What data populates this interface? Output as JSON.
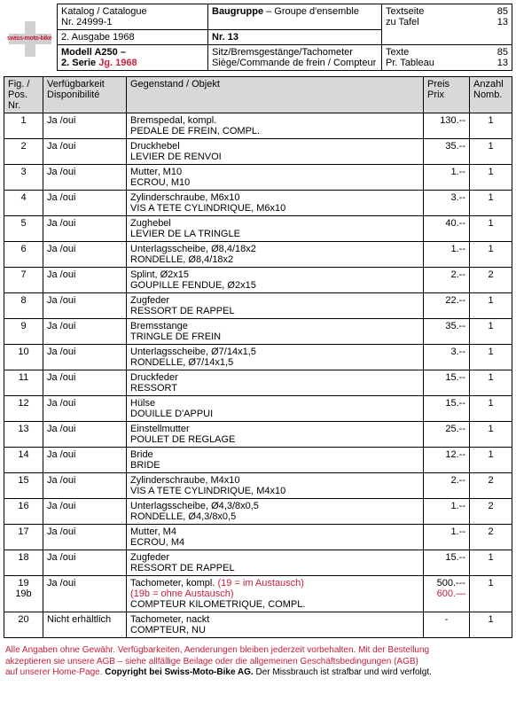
{
  "header": {
    "katalog_label": "Katalog / Catalogue",
    "katalog_nr": "Nr. 24999-1",
    "baugruppe_label": "Baugruppe",
    "baugruppe_sub": " – Groupe d'ensemble",
    "textseite_label": "Textseite",
    "textseite_val": "85",
    "tafel_label": "zu Tafel",
    "tafel_val": "13",
    "ausgabe": "2. Ausgabe 1968",
    "nr_label": "Nr. 13",
    "modell_line1": "Modell A250 –",
    "modell_line2a": "2. Serie ",
    "modell_line2b": "Jg. 1968",
    "desc_de": "Sitz/Bremsgestänge/Tachometer",
    "desc_fr": "Siège/Commande de frein / Compteur",
    "texte_label": "Texte",
    "texte_val": "85",
    "prtab_label": "Pr. Tableau",
    "prtab_val": "13"
  },
  "columns": {
    "fig": "Fig. / Pos. Nr.",
    "verf": "Verfügbarkeit Disponibilité",
    "gegen": "Gegenstand / Objekt",
    "preis": "Preis Prix",
    "anz": "Anzahl Nomb."
  },
  "rows": [
    {
      "fig": "1",
      "verf": "Ja /oui",
      "de": "Bremspedal, kompl.",
      "fr": "PEDALE DE FREIN, COMPL.",
      "preis": "130.--",
      "anz": "1"
    },
    {
      "fig": "2",
      "verf": "Ja /oui",
      "de": "Druckhebel",
      "fr": "LEVIER DE RENVOI",
      "preis": "35.--",
      "anz": "1"
    },
    {
      "fig": "3",
      "verf": "Ja /oui",
      "de": "Mutter, M10",
      "fr": "ECROU, M10",
      "preis": "1.--",
      "anz": "1"
    },
    {
      "fig": "4",
      "verf": "Ja /oui",
      "de": "Zylinderschraube, M6x10",
      "fr": "VIS A TETE CYLINDRIQUE, M6x10",
      "preis": "3.--",
      "anz": "1"
    },
    {
      "fig": "5",
      "verf": "Ja /oui",
      "de": "Zughebel",
      "fr": "LEVIER DE LA TRINGLE",
      "preis": "40.--",
      "anz": "1"
    },
    {
      "fig": "6",
      "verf": "Ja /oui",
      "de": "Unterlagsscheibe, Ø8,4/18x2",
      "fr": "RONDELLE, Ø8,4/18x2",
      "preis": "1.--",
      "anz": "1"
    },
    {
      "fig": "7",
      "verf": "Ja /oui",
      "de": "Splint, Ø2x15",
      "fr": "GOUPILLE FENDUE, Ø2x15",
      "preis": "2.--",
      "anz": "2"
    },
    {
      "fig": "8",
      "verf": "Ja /oui",
      "de": "Zugfeder",
      "fr": "RESSORT DE RAPPEL",
      "preis": "22.--",
      "anz": "1"
    },
    {
      "fig": "9",
      "verf": "Ja /oui",
      "de": "Bremsstange",
      "fr": "TRINGLE DE FREIN",
      "preis": "35.--",
      "anz": "1"
    },
    {
      "fig": "10",
      "verf": "Ja /oui",
      "de": "Unterlagsscheibe, Ø7/14x1,5",
      "fr": "RONDELLE, Ø7/14x1,5",
      "preis": "3.--",
      "anz": "1"
    },
    {
      "fig": "11",
      "verf": "Ja /oui",
      "de": "Druckfeder",
      "fr": "RESSORT",
      "preis": "15.--",
      "anz": "1"
    },
    {
      "fig": "12",
      "verf": "Ja /oui",
      "de": "Hülse",
      "fr": "DOUILLE D'APPUI",
      "preis": "15.--",
      "anz": "1"
    },
    {
      "fig": "13",
      "verf": "Ja /oui",
      "de": "Einstellmutter",
      "fr": "POULET DE REGLAGE",
      "preis": "25.--",
      "anz": "1"
    },
    {
      "fig": "14",
      "verf": "Ja /oui",
      "de": "Bride",
      "fr": "BRIDE",
      "preis": "12.--",
      "anz": "1"
    },
    {
      "fig": "15",
      "verf": "Ja /oui",
      "de": "Zylinderschraube, M4x10",
      "fr": "VIS A TETE CYLINDRIQUE, M4x10",
      "preis": "2.--",
      "anz": "2"
    },
    {
      "fig": "16",
      "verf": "Ja /oui",
      "de": "Unterlagsscheibe, Ø4,3/8x0,5",
      "fr": "RONDELLE, Ø4,3/8x0,5",
      "preis": "1.--",
      "anz": "2"
    },
    {
      "fig": "17",
      "verf": "Ja /oui",
      "de": "Mutter, M4",
      "fr": "ECROU, M4",
      "preis": "1.--",
      "anz": "2"
    },
    {
      "fig": "18",
      "verf": "Ja /oui",
      "de": "Zugfeder",
      "fr": "RESSORT DE RAPPEL",
      "preis": "15.--",
      "anz": "1"
    }
  ],
  "row19": {
    "fig1": "19",
    "fig2": "19b",
    "verf": "Ja /oui",
    "de": "Tachometer, kompl. ",
    "de_red": "(19 = im Austausch)",
    "l2_red": "(19b = ohne Austausch)",
    "fr": "COMPTEUR KILOMETRIQUE, COMPL.",
    "preis1": "500.---",
    "preis2": "600.—",
    "anz": "1"
  },
  "row20": {
    "fig": "20",
    "verf": "Nicht erhältlich",
    "de": "Tachometer, nackt",
    "fr": "COMPTEUR, NU",
    "preis": "-",
    "anz": "1"
  },
  "footer": {
    "l1": "Alle Angaben ohne Gewähr. Verfügbarkeiten, Aenderungen bleiben jederzeit vorbehalten. Mit der Bestellung",
    "l2": "akzeptieren sie unsere AGB – siehe allfällige Beilage oder die allgemeinen Geschäftsbedingungen (AGB)",
    "l3a": "auf unserer Home-Page. ",
    "l3b": "Copyright bei Swiss-Moto-Bike AG.",
    "l3c": " Der Missbrauch ist strafbar und wird verfolgt."
  }
}
